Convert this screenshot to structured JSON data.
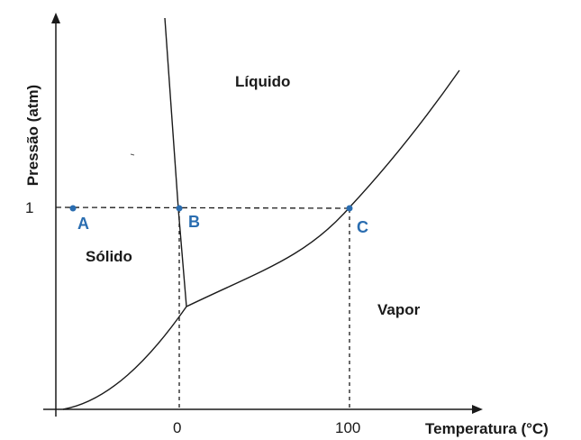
{
  "axes": {
    "y_title": "Pressão (atm)",
    "x_title": "Temperatura (°C)",
    "y_tick": "1",
    "x_ticks": [
      "0",
      "100"
    ]
  },
  "regions": {
    "liquid": "Líquido",
    "solid": "Sólido",
    "vapor": "Vapor"
  },
  "points": {
    "a": "A",
    "b": "B",
    "c": "C"
  },
  "colors": {
    "line": "#1a1a1a",
    "point": "#2a6db0"
  }
}
